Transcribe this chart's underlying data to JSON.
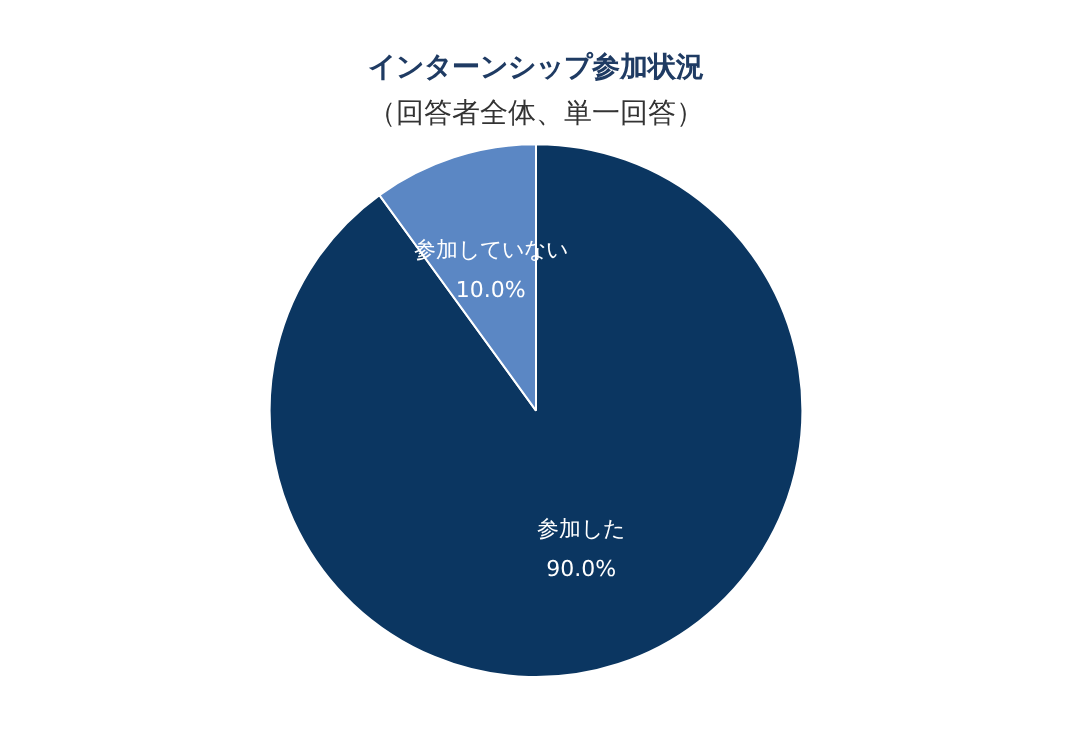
{
  "chart_data": {
    "type": "pie",
    "title": "インターンシップ参加状況",
    "subtitle": "（回答者全体、単一回答）",
    "categories": [
      "参加した",
      "参加していない"
    ],
    "values": [
      90,
      10
    ],
    "value_labels": [
      "90.0%",
      "10.0%"
    ],
    "colors": [
      "#0b3661",
      "#5b87c4"
    ],
    "legend": false
  }
}
